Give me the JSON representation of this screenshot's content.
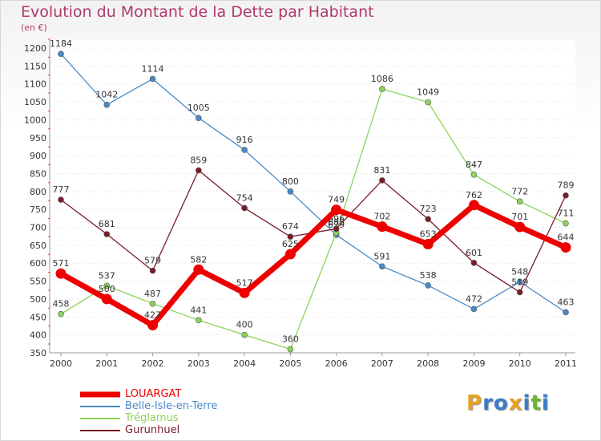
{
  "chart_data": {
    "type": "line",
    "title": "Evolution du Montant de la Dette par Habitant",
    "subtitle": "(en €)",
    "xlabel": "",
    "ylabel": "",
    "ylim": [
      350,
      1200
    ],
    "ytick_step": 50,
    "categories": [
      "2000",
      "2001",
      "2002",
      "2003",
      "2004",
      "2005",
      "2006",
      "2007",
      "2008",
      "2009",
      "2010",
      "2011"
    ],
    "series": [
      {
        "name": "Belle-Isle-en-Terre",
        "color": "#4b8ac6",
        "values": [
          1184,
          1042,
          1114,
          1005,
          916,
          800,
          679,
          591,
          538,
          472,
          548,
          463
        ]
      },
      {
        "name": "Tréglamus",
        "color": "#8dd35a",
        "values": [
          458,
          537,
          487,
          441,
          400,
          360,
          685,
          1086,
          1049,
          847,
          772,
          711
        ]
      },
      {
        "name": "Gurunhuel",
        "color": "#7a1c28",
        "values": [
          777,
          681,
          579,
          859,
          754,
          674,
          696,
          831,
          723,
          601,
          519,
          789
        ]
      },
      {
        "name": "LOUARGAT",
        "color": "#ee0000",
        "values": [
          571,
          500,
          427,
          582,
          517,
          625,
          749,
          702,
          653,
          762,
          701,
          644
        ]
      }
    ]
  },
  "legend": [
    {
      "name": "LOUARGAT",
      "color": "#ee0000"
    },
    {
      "name": "Belle-Isle-en-Terre",
      "color": "#4b8ac6"
    },
    {
      "name": "Tréglamus",
      "color": "#8dd35a"
    },
    {
      "name": "Gurunhuel",
      "color": "#7a1c28"
    }
  ],
  "logo": {
    "letters": [
      "P",
      "r",
      "o",
      "x",
      "i",
      "t",
      "i"
    ],
    "colors": [
      "#e8a020",
      "#3a7dc8",
      "#3a7dc8",
      "#e8a020",
      "#3a7dc8",
      "#6ab82e",
      "#3a7dc8"
    ]
  }
}
